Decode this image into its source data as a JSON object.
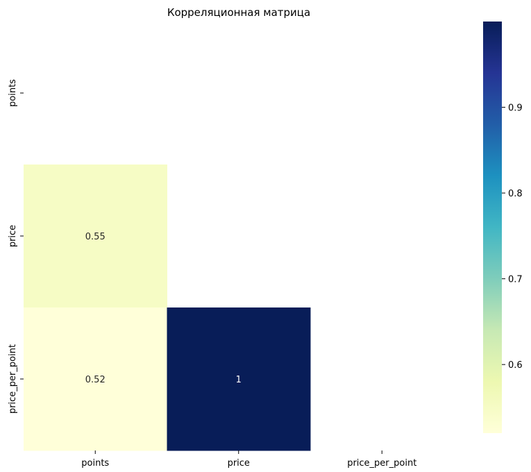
{
  "chart_data": {
    "type": "heatmap",
    "title": "Корреляционная матрица",
    "xlabel": "",
    "ylabel": "",
    "x_categories": [
      "points",
      "price",
      "price_per_point"
    ],
    "y_categories": [
      "points",
      "price",
      "price_per_point"
    ],
    "mask": "upper-triangle including diagonal",
    "cells": [
      {
        "row": "price",
        "col": "points",
        "value": 0.55,
        "label": "0.55"
      },
      {
        "row": "price_per_point",
        "col": "points",
        "value": 0.52,
        "label": "0.52"
      },
      {
        "row": "price_per_point",
        "col": "price",
        "value": 1.0,
        "label": "1"
      }
    ],
    "colormap": "YlGnBu",
    "colorbar": {
      "range": [
        0.52,
        1.0
      ],
      "ticks": [
        0.6,
        0.7,
        0.8,
        0.9
      ],
      "tick_labels": [
        "0.6",
        "0.7",
        "0.8",
        "0.9"
      ]
    },
    "grid": false,
    "legend": "colorbar right"
  }
}
